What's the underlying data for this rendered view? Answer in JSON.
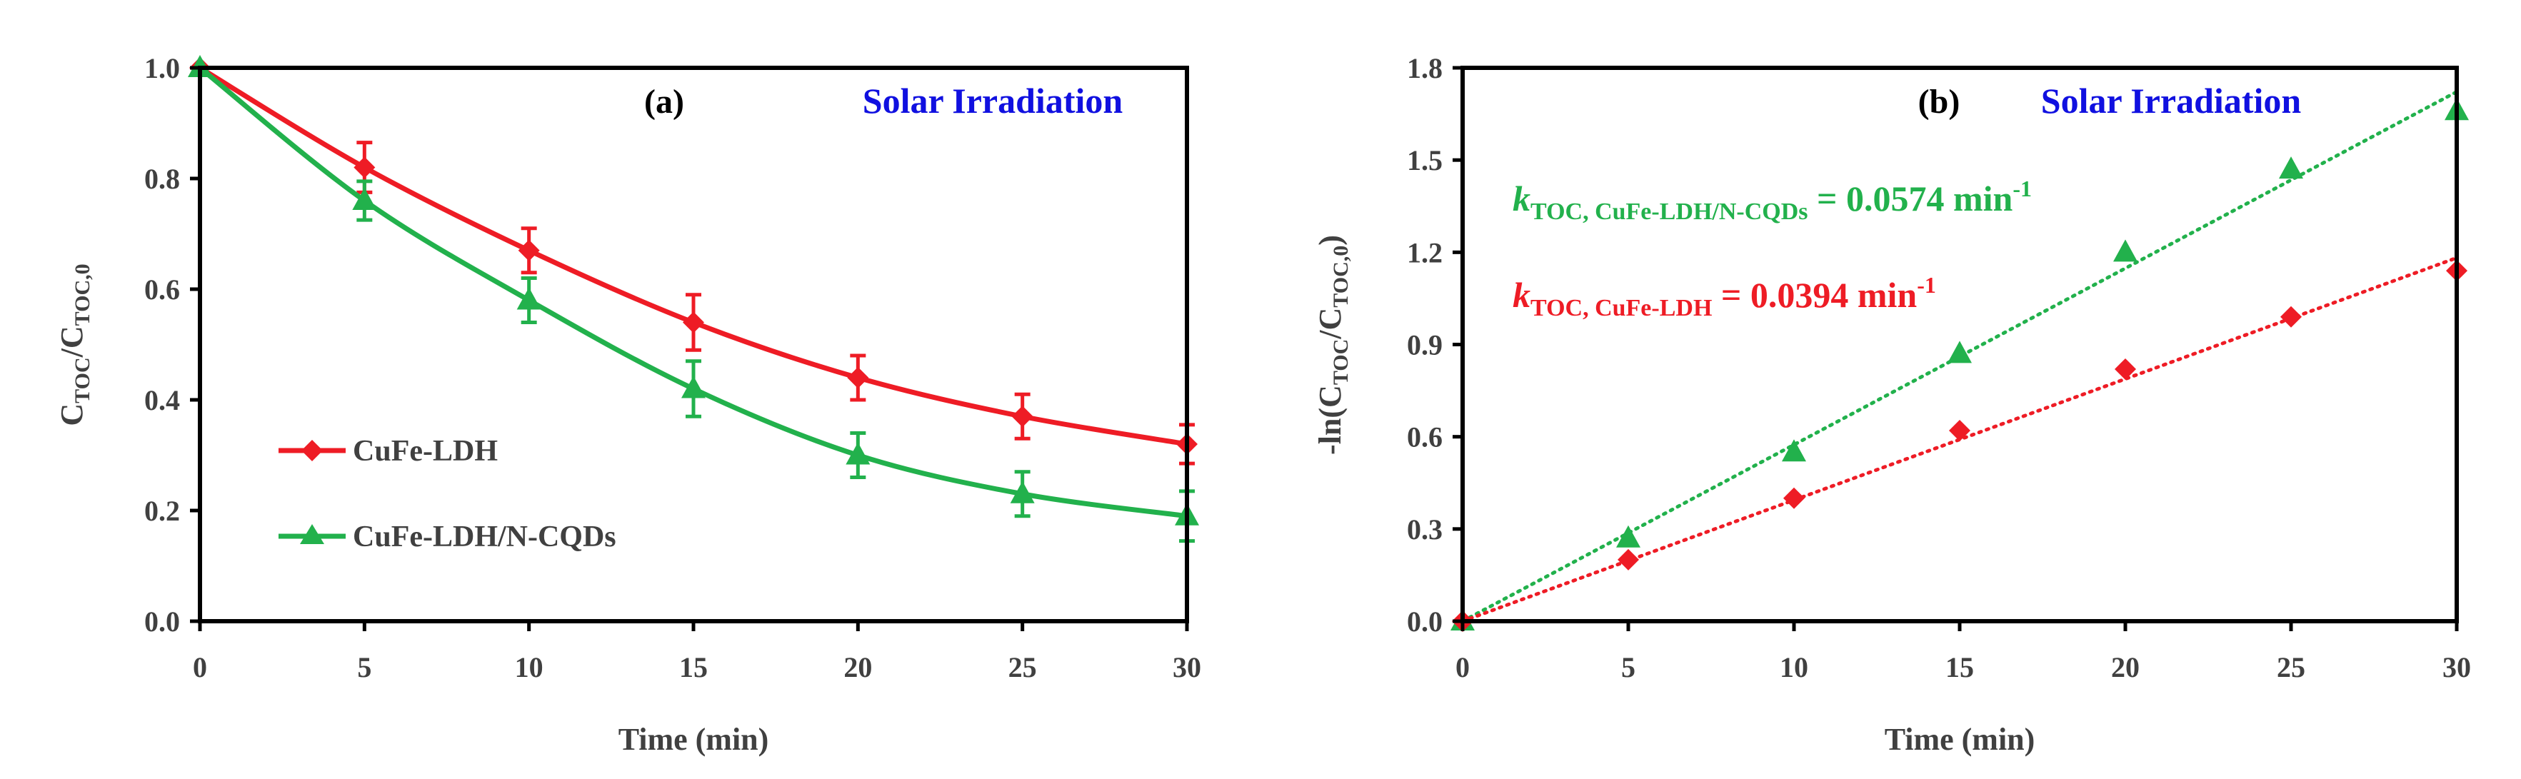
{
  "chart_data": [
    {
      "panel": "(a)",
      "type": "line",
      "banner": "Solar Irradiation",
      "xlabel": "Time (min)",
      "ylabel": {
        "base": "C",
        "sub1": "TOC",
        "mid": "/C",
        "sub2": "TOC,0"
      },
      "x": [
        0,
        5,
        10,
        15,
        20,
        25,
        30
      ],
      "xlim": [
        0,
        30
      ],
      "ylim": [
        0,
        1.0
      ],
      "x_ticks": [
        "0",
        "5",
        "10",
        "15",
        "20",
        "25",
        "30"
      ],
      "y_ticks": [
        "0.0",
        "0.2",
        "0.4",
        "0.6",
        "0.8",
        "1.0"
      ],
      "series": [
        {
          "name": "CuFe-LDH",
          "color": "#ee1c25",
          "marker": "diamond",
          "values": [
            1.0,
            0.82,
            0.67,
            0.54,
            0.44,
            0.37,
            0.32
          ],
          "errors": [
            0.0,
            0.045,
            0.04,
            0.05,
            0.04,
            0.04,
            0.035
          ]
        },
        {
          "name": "CuFe-LDH/N-CQDs",
          "color": "#22b14c",
          "marker": "triangle",
          "values": [
            1.0,
            0.76,
            0.58,
            0.42,
            0.3,
            0.23,
            0.19
          ],
          "errors": [
            0.0,
            0.035,
            0.04,
            0.05,
            0.04,
            0.04,
            0.045
          ]
        }
      ]
    },
    {
      "panel": "(b)",
      "type": "scatter",
      "banner": "Solar Irradiation",
      "xlabel": "Time (min)",
      "ylabel": {
        "pre": "-ln(C",
        "sub1": "TOC",
        "mid": "/C",
        "sub2": "TOC,0",
        "post": ")"
      },
      "x": [
        0,
        5,
        10,
        15,
        20,
        25,
        30
      ],
      "xlim": [
        0,
        30
      ],
      "ylim": [
        0,
        1.8
      ],
      "x_ticks": [
        "0",
        "5",
        "10",
        "15",
        "20",
        "25",
        "30"
      ],
      "y_ticks": [
        "0.0",
        "0.3",
        "0.6",
        "0.9",
        "1.2",
        "1.5",
        "1.8"
      ],
      "series": [
        {
          "name": "CuFe-LDH/N-CQDs",
          "color": "#22b14c",
          "marker": "triangle",
          "values": [
            0.0,
            0.27,
            0.55,
            0.87,
            1.2,
            1.47,
            1.66
          ],
          "fit_slope": 0.0574,
          "annotation": {
            "k": "k",
            "sub": "TOC, CuFe-LDH/N-CQDs",
            "eq": " = 0.0574 min",
            "sup": "-1"
          }
        },
        {
          "name": "CuFe-LDH",
          "color": "#ee1c25",
          "marker": "diamond",
          "values": [
            0.0,
            0.2,
            0.4,
            0.62,
            0.82,
            0.99,
            1.14
          ],
          "fit_slope": 0.0394,
          "annotation": {
            "k": "k",
            "sub": "TOC, CuFe-LDH",
            "eq": " = 0.0394 min",
            "sup": "-1"
          }
        }
      ]
    }
  ],
  "colors": {
    "banner": "#1010e0",
    "axis": "#000000"
  }
}
